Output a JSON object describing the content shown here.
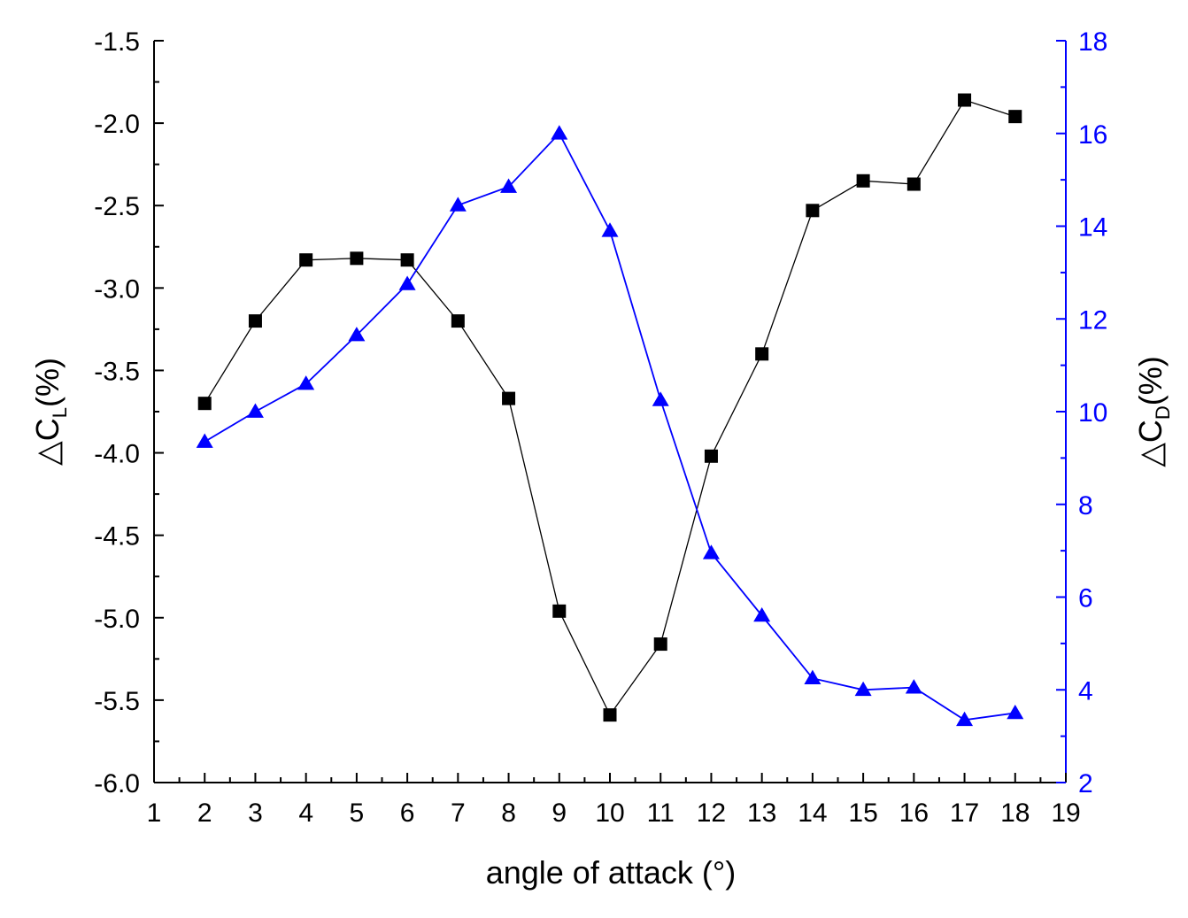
{
  "chart_data": {
    "type": "line",
    "title": "",
    "xlabel": "angle of attack (°)",
    "x": [
      2,
      3,
      4,
      5,
      6,
      7,
      8,
      9,
      10,
      11,
      12,
      13,
      14,
      15,
      16,
      17,
      18
    ],
    "x_ticks": [
      "1",
      "2",
      "3",
      "4",
      "5",
      "6",
      "7",
      "8",
      "9",
      "10",
      "11",
      "12",
      "13",
      "14",
      "15",
      "16",
      "17",
      "18",
      "19"
    ],
    "xlim": [
      1,
      19
    ],
    "y_left": {
      "label_prefix": "△C",
      "label_sub": "L",
      "label_suffix": "(%)",
      "ylim": [
        -6.0,
        -1.5
      ],
      "ticks": [
        "-1.5",
        "-2.0",
        "-2.5",
        "-3.0",
        "-3.5",
        "-4.0",
        "-4.5",
        "-5.0",
        "-5.5",
        "-6.0"
      ],
      "color": "#000000"
    },
    "y_right": {
      "label_prefix": "△C",
      "label_sub": "D",
      "label_suffix": "(%)",
      "ylim": [
        2,
        18
      ],
      "ticks": [
        "2",
        "4",
        "6",
        "8",
        "10",
        "12",
        "14",
        "16",
        "18"
      ],
      "color": "#0000ff"
    },
    "series": [
      {
        "name": "△CL",
        "axis": "left",
        "marker": "square",
        "color": "#000000",
        "values": [
          -3.7,
          -3.2,
          -2.83,
          -2.82,
          -2.83,
          -3.2,
          -3.67,
          -4.96,
          -5.59,
          -5.16,
          -4.02,
          -3.4,
          -2.53,
          -2.35,
          -2.37,
          -1.86,
          -1.96
        ]
      },
      {
        "name": "△CD",
        "axis": "right",
        "marker": "triangle",
        "color": "#0000ff",
        "values": [
          9.35,
          10.0,
          10.6,
          11.65,
          12.75,
          14.45,
          14.85,
          16.0,
          13.9,
          10.25,
          6.95,
          5.6,
          4.25,
          4.0,
          4.05,
          3.35,
          3.5
        ]
      }
    ]
  }
}
